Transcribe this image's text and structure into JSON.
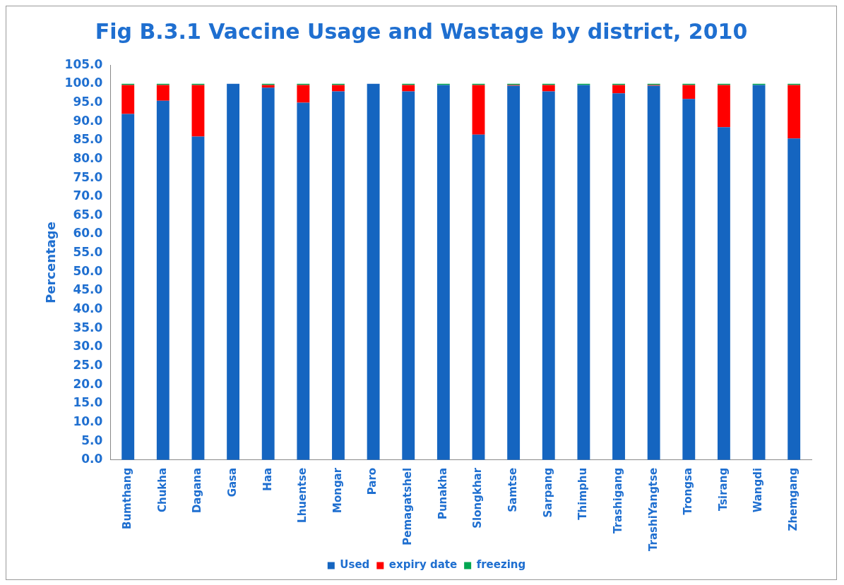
{
  "chart_data": {
    "type": "bar",
    "title": "Fig B.3.1 Vaccine Usage and Wastage by district, 2010",
    "ylabel": "Percentage",
    "categories": [
      "Bumthang",
      "Chukha",
      "Dagana",
      "Gasa",
      "Haa",
      "Lhuentse",
      "Mongar",
      "Paro",
      "Pemagatshel",
      "Punakha",
      "Slongkhar",
      "Samtse",
      "Sarpang",
      "Thimphu",
      "Trashigang",
      "TrashiYangtse",
      "Trongsa",
      "Tsirang",
      "Wangdi",
      "Zhemgang"
    ],
    "stacked": true,
    "legend": "bottom",
    "grid": false,
    "ylim": [
      0,
      105
    ],
    "yticks": [
      {
        "value": 0,
        "label": "0.0"
      },
      {
        "value": 5,
        "label": "5.0"
      },
      {
        "value": 10,
        "label": "10.0"
      },
      {
        "value": 15,
        "label": "15.0"
      },
      {
        "value": 20,
        "label": "20.0"
      },
      {
        "value": 25,
        "label": "25.0"
      },
      {
        "value": 30,
        "label": "30.0"
      },
      {
        "value": 35,
        "label": "35.0"
      },
      {
        "value": 40,
        "label": "40.0"
      },
      {
        "value": 45,
        "label": "45.0"
      },
      {
        "value": 50,
        "label": "50.0"
      },
      {
        "value": 55,
        "label": "55.0"
      },
      {
        "value": 60,
        "label": "60.0"
      },
      {
        "value": 65,
        "label": "65.0"
      },
      {
        "value": 70,
        "label": "70.0"
      },
      {
        "value": 75,
        "label": "75.0"
      },
      {
        "value": 80,
        "label": "80.0"
      },
      {
        "value": 85,
        "label": "85.0"
      },
      {
        "value": 90,
        "label": "90.0"
      },
      {
        "value": 95,
        "label": "95.0"
      },
      {
        "value": 100,
        "label": "100.0"
      },
      {
        "value": 105,
        "label": "105.0"
      }
    ],
    "series": [
      {
        "name": "Used",
        "color": "#1565c0",
        "values": [
          92,
          95.5,
          86,
          100,
          99,
          95,
          98,
          100,
          98,
          99.7,
          86.5,
          99.5,
          98,
          99.7,
          97.5,
          99.5,
          96,
          88.5,
          99.7,
          85.5
        ]
      },
      {
        "name": "expiry date",
        "color": "#ff0000",
        "values": [
          7.7,
          4.2,
          13.7,
          0,
          0.7,
          4.7,
          1.7,
          0,
          1.7,
          0,
          13.2,
          0.2,
          1.7,
          0,
          2.2,
          0.2,
          3.7,
          11.2,
          0,
          14.2
        ]
      },
      {
        "name": "freezing",
        "color": "#00a651",
        "values": [
          0.3,
          0.3,
          0.3,
          0,
          0.3,
          0.3,
          0.3,
          0,
          0.3,
          0.3,
          0.3,
          0.3,
          0.3,
          0.3,
          0.3,
          0.3,
          0.3,
          0.3,
          0.3,
          0.3
        ]
      }
    ]
  }
}
